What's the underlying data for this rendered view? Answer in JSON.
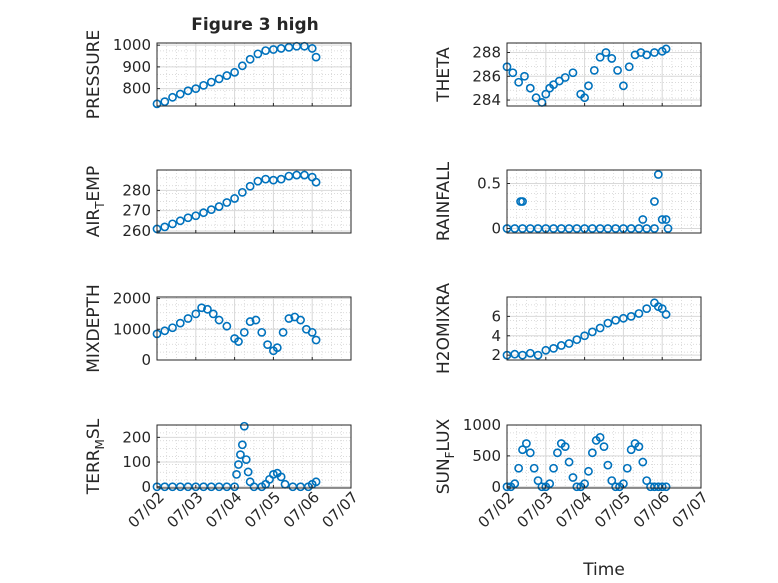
{
  "figure": {
    "title": "Figure 3 high",
    "xlabel": "Time",
    "marker_color": "#0072BD",
    "x_tick_labels": [
      "07/02",
      "07/03",
      "07/04",
      "07/05",
      "07/06",
      "07/07"
    ]
  },
  "chart_data": [
    {
      "type": "scatter",
      "name": "pressure",
      "title": "Figure 3 high",
      "xlabel": "",
      "ylabel": "PRESSURE",
      "grid": true,
      "xlim": [
        0,
        5
      ],
      "ylim": [
        720,
        1010
      ],
      "yticks": [
        800,
        900,
        1000
      ],
      "x": [
        0.0,
        0.2,
        0.4,
        0.6,
        0.8,
        1.0,
        1.2,
        1.4,
        1.6,
        1.8,
        2.0,
        2.2,
        2.4,
        2.6,
        2.8,
        3.0,
        3.2,
        3.4,
        3.6,
        3.8,
        4.0,
        4.1
      ],
      "y": [
        730,
        740,
        760,
        775,
        790,
        800,
        815,
        830,
        845,
        860,
        875,
        905,
        935,
        960,
        975,
        980,
        985,
        990,
        995,
        995,
        985,
        945
      ]
    },
    {
      "type": "scatter",
      "name": "theta",
      "xlabel": "",
      "ylabel": "THETA",
      "grid": true,
      "xlim": [
        0,
        5
      ],
      "ylim": [
        283.5,
        288.8
      ],
      "yticks": [
        284,
        286,
        288
      ],
      "x": [
        0.0,
        0.15,
        0.3,
        0.45,
        0.6,
        0.75,
        0.9,
        1.0,
        1.1,
        1.2,
        1.35,
        1.5,
        1.7,
        1.9,
        2.0,
        2.1,
        2.25,
        2.4,
        2.55,
        2.7,
        2.85,
        3.0,
        3.15,
        3.3,
        3.45,
        3.6,
        3.8,
        4.0,
        4.1
      ],
      "y": [
        286.8,
        286.3,
        285.5,
        286.0,
        285.0,
        284.2,
        283.8,
        284.5,
        285.0,
        285.3,
        285.6,
        285.9,
        286.3,
        284.5,
        284.2,
        285.2,
        286.5,
        287.6,
        288.0,
        287.5,
        286.5,
        285.2,
        286.8,
        287.8,
        288.0,
        287.8,
        288.0,
        288.1,
        288.3
      ]
    },
    {
      "type": "scatter",
      "name": "air-temp",
      "xlabel": "",
      "ylabel": "AIR_TEMP",
      "grid": true,
      "xlim": [
        0,
        5
      ],
      "ylim": [
        259,
        290
      ],
      "yticks": [
        260,
        270,
        280
      ],
      "x": [
        0.0,
        0.2,
        0.4,
        0.6,
        0.8,
        1.0,
        1.2,
        1.4,
        1.6,
        1.8,
        2.0,
        2.2,
        2.4,
        2.6,
        2.8,
        3.0,
        3.2,
        3.4,
        3.6,
        3.8,
        4.0,
        4.1
      ],
      "y": [
        261,
        262,
        263.5,
        265,
        266.5,
        267.5,
        269,
        270.5,
        272,
        274,
        276,
        279,
        282,
        284.5,
        285.5,
        285,
        285.5,
        287,
        287.5,
        287.5,
        286.5,
        284
      ]
    },
    {
      "type": "scatter",
      "name": "rainfall",
      "xlabel": "",
      "ylabel": "RAINFALL",
      "grid": true,
      "xlim": [
        0,
        5
      ],
      "ylim": [
        -0.05,
        0.65
      ],
      "yticks": [
        0,
        0.5
      ],
      "x": [
        0.0,
        0.2,
        0.4,
        0.6,
        0.8,
        1.0,
        1.2,
        1.4,
        1.6,
        1.8,
        2.0,
        2.2,
        2.4,
        2.6,
        2.8,
        3.0,
        3.2,
        3.4,
        3.6,
        3.8,
        0.35,
        0.4,
        3.5,
        3.8,
        3.9,
        4.0,
        4.1,
        4.15
      ],
      "y": [
        0,
        0,
        0,
        0,
        0,
        0,
        0,
        0,
        0,
        0,
        0,
        0,
        0,
        0,
        0,
        0,
        0,
        0,
        0,
        0,
        0.3,
        0.3,
        0.1,
        0.3,
        0.6,
        0.1,
        0.1,
        0.0
      ]
    },
    {
      "type": "scatter",
      "name": "mixdepth",
      "xlabel": "",
      "ylabel": "MIXDEPTH",
      "grid": true,
      "xlim": [
        0,
        5
      ],
      "ylim": [
        0,
        2050
      ],
      "yticks": [
        0,
        1000,
        2000
      ],
      "x": [
        0.0,
        0.2,
        0.4,
        0.6,
        0.8,
        1.0,
        1.15,
        1.3,
        1.45,
        1.6,
        1.8,
        2.0,
        2.1,
        2.25,
        2.4,
        2.55,
        2.7,
        2.85,
        3.0,
        3.1,
        3.25,
        3.4,
        3.55,
        3.7,
        3.85,
        4.0,
        4.1
      ],
      "y": [
        850,
        950,
        1050,
        1200,
        1350,
        1500,
        1700,
        1650,
        1500,
        1300,
        1100,
        700,
        600,
        900,
        1250,
        1300,
        900,
        500,
        300,
        400,
        900,
        1350,
        1400,
        1300,
        1000,
        900,
        650
      ]
    },
    {
      "type": "scatter",
      "name": "h2omixra",
      "xlabel": "",
      "ylabel": "H2OMIXRA",
      "grid": true,
      "xlim": [
        0,
        5
      ],
      "ylim": [
        1.5,
        8.0
      ],
      "yticks": [
        2,
        4,
        6
      ],
      "x": [
        0.0,
        0.2,
        0.4,
        0.6,
        0.8,
        1.0,
        1.2,
        1.4,
        1.6,
        1.8,
        2.0,
        2.2,
        2.4,
        2.6,
        2.8,
        3.0,
        3.2,
        3.4,
        3.6,
        3.8,
        3.9,
        4.0,
        4.1
      ],
      "y": [
        2.0,
        2.1,
        2.0,
        2.2,
        2.0,
        2.5,
        2.7,
        3.0,
        3.2,
        3.6,
        4.0,
        4.4,
        4.8,
        5.3,
        5.6,
        5.8,
        6.0,
        6.3,
        6.8,
        7.4,
        7.0,
        6.8,
        6.2
      ]
    },
    {
      "type": "scatter",
      "name": "terr-msl",
      "xlabel": "",
      "ylabel": "TERR_MSL",
      "grid": true,
      "xlim": [
        0,
        5
      ],
      "ylim": [
        -5,
        250
      ],
      "yticks": [
        0,
        100,
        200
      ],
      "x": [
        0.0,
        0.2,
        0.4,
        0.6,
        0.8,
        1.0,
        1.2,
        1.4,
        1.6,
        1.8,
        2.0,
        2.05,
        2.1,
        2.15,
        2.2,
        2.25,
        2.3,
        2.35,
        2.4,
        2.5,
        2.7,
        2.8,
        2.9,
        3.0,
        3.1,
        3.2,
        3.3,
        3.5,
        3.7,
        3.9,
        4.0,
        4.1
      ],
      "y": [
        0,
        0,
        0,
        0,
        0,
        0,
        0,
        0,
        0,
        0,
        0,
        50,
        90,
        130,
        170,
        245,
        110,
        60,
        20,
        0,
        0,
        10,
        30,
        50,
        55,
        40,
        10,
        0,
        0,
        0,
        10,
        20
      ]
    },
    {
      "type": "scatter",
      "name": "sun-flux",
      "xlabel": "Time",
      "ylabel": "SUN_FLUX",
      "grid": true,
      "xlim": [
        0,
        5
      ],
      "ylim": [
        -20,
        1000
      ],
      "yticks": [
        0,
        500,
        1000
      ],
      "x": [
        0.0,
        0.1,
        0.2,
        0.3,
        0.4,
        0.5,
        0.6,
        0.7,
        0.8,
        0.9,
        1.0,
        1.1,
        1.2,
        1.3,
        1.4,
        1.5,
        1.6,
        1.7,
        1.8,
        1.9,
        2.0,
        2.1,
        2.2,
        2.3,
        2.4,
        2.5,
        2.6,
        2.7,
        2.8,
        2.9,
        3.0,
        3.1,
        3.2,
        3.3,
        3.4,
        3.5,
        3.6,
        3.7,
        3.8,
        3.9,
        4.0,
        4.1
      ],
      "y": [
        0,
        0,
        50,
        300,
        600,
        700,
        550,
        300,
        100,
        0,
        0,
        50,
        300,
        550,
        700,
        650,
        400,
        150,
        0,
        0,
        50,
        250,
        550,
        750,
        800,
        650,
        350,
        100,
        0,
        0,
        50,
        300,
        600,
        700,
        650,
        400,
        100,
        0,
        0,
        0,
        0,
        0
      ]
    }
  ]
}
